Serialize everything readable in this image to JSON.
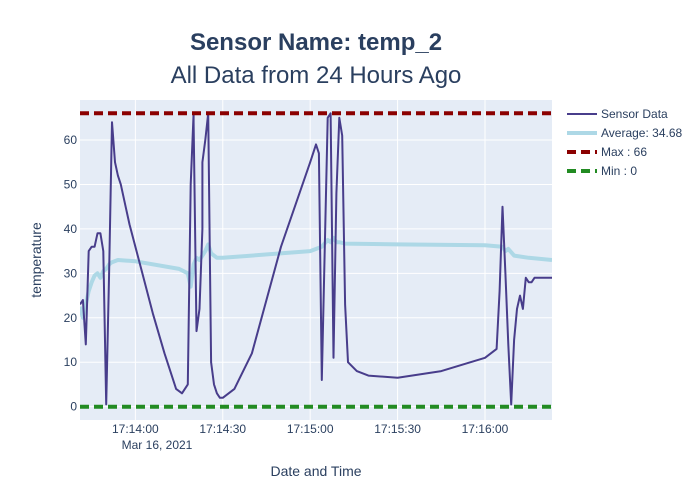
{
  "chart_data": {
    "type": "line",
    "title": "Sensor Name: temp_2",
    "subtitle": "All Data from 24 Hours Ago",
    "xlabel": "Date and Time",
    "ylabel": "temperature",
    "x_date_label": "Mar 16, 2021",
    "xlim": [
      "17:13:41",
      "17:16:23"
    ],
    "ylim": [
      -3,
      69
    ],
    "x_ticks": [
      "17:14:00",
      "17:14:30",
      "17:15:00",
      "17:15:30",
      "17:16:00"
    ],
    "y_ticks": [
      0,
      10,
      20,
      30,
      40,
      50,
      60
    ],
    "grid": true,
    "legend_position": "right",
    "colors": {
      "plot_bg": "#e5ecf6",
      "grid": "#ffffff",
      "text": "#2a3f5f",
      "sensor": "#483d8b",
      "average": "#add8e6",
      "max": "#8b0000",
      "min": "#228b22"
    },
    "series": [
      {
        "name": "Sensor Data",
        "x": [
          "17:13:41",
          "17:13:42",
          "17:13:43",
          "17:13:44",
          "17:13:45",
          "17:13:46",
          "17:13:47",
          "17:13:48",
          "17:13:49",
          "17:13:50",
          "17:13:51",
          "17:13:52",
          "17:13:53",
          "17:13:54",
          "17:13:55",
          "17:13:56",
          "17:13:58",
          "17:14:02",
          "17:14:06",
          "17:14:10",
          "17:14:14",
          "17:14:16",
          "17:14:18",
          "17:14:19",
          "17:14:20",
          "17:14:20",
          "17:14:21",
          "17:14:22",
          "17:14:23",
          "17:14:23",
          "17:14:24",
          "17:14:25",
          "17:14:26",
          "17:14:27",
          "17:14:28",
          "17:14:29",
          "17:14:30",
          "17:14:34",
          "17:14:40",
          "17:14:50",
          "17:15:00",
          "17:15:02",
          "17:15:03",
          "17:15:04",
          "17:15:05",
          "17:15:06",
          "17:15:07",
          "17:15:08",
          "17:15:09",
          "17:15:10",
          "17:15:11",
          "17:15:12",
          "17:15:13",
          "17:15:16",
          "17:15:20",
          "17:15:30",
          "17:15:45",
          "17:16:00",
          "17:16:04",
          "17:16:05",
          "17:16:06",
          "17:16:07",
          "17:16:08",
          "17:16:09",
          "17:16:10",
          "17:16:11",
          "17:16:12",
          "17:16:13",
          "17:16:14",
          "17:16:15",
          "17:16:16",
          "17:16:17",
          "17:16:18",
          "17:16:19",
          "17:16:20",
          "17:16:21",
          "17:16:22",
          "17:16:23"
        ],
        "values": [
          23,
          24,
          14,
          35,
          36,
          36,
          39,
          39,
          35,
          0.5,
          30,
          64,
          55,
          52,
          50,
          47,
          41,
          31,
          21,
          12,
          4,
          3,
          5,
          50,
          66,
          64,
          17,
          22,
          40,
          55,
          60,
          66,
          10,
          5,
          3,
          2,
          2,
          4,
          12,
          36,
          55,
          59,
          57,
          6,
          35,
          65,
          66,
          11,
          48,
          65,
          61,
          23,
          10,
          8,
          7,
          6.5,
          8,
          11,
          13,
          26,
          45,
          30,
          14,
          0.5,
          15,
          22,
          25,
          22,
          29,
          28,
          28,
          29,
          29,
          29,
          29,
          29,
          29,
          29
        ]
      },
      {
        "name": "Average: 34.68",
        "x": [
          "17:13:41",
          "17:13:42",
          "17:13:43",
          "17:13:44",
          "17:13:45",
          "17:13:46",
          "17:13:47",
          "17:13:48",
          "17:13:49",
          "17:13:50",
          "17:13:51",
          "17:13:52",
          "17:13:54",
          "17:14:00",
          "17:14:15",
          "17:14:18",
          "17:14:19",
          "17:14:20",
          "17:14:21",
          "17:14:22",
          "17:14:23",
          "17:14:24",
          "17:14:25",
          "17:14:26",
          "17:14:27",
          "17:14:28",
          "17:14:30",
          "17:15:00",
          "17:15:04",
          "17:15:06",
          "17:15:07",
          "17:15:08",
          "17:15:09",
          "17:15:10",
          "17:15:12",
          "17:15:30",
          "17:16:00",
          "17:16:06",
          "17:16:07",
          "17:16:08",
          "17:16:10",
          "17:16:15",
          "17:16:23"
        ],
        "values": [
          22.5,
          20,
          23,
          26,
          28,
          29.5,
          30,
          29,
          30.5,
          31,
          32,
          32.5,
          33,
          32.7,
          31,
          30,
          27,
          32,
          33.5,
          33,
          34,
          35,
          36.5,
          34.5,
          34,
          33.5,
          33.5,
          35,
          36,
          37.5,
          37,
          38,
          37,
          37,
          36.7,
          36.5,
          36.3,
          36,
          35,
          35.5,
          34,
          33.5,
          33
        ]
      },
      {
        "name": "Max : 66",
        "x": [
          "17:13:41",
          "17:16:23"
        ],
        "values": [
          66,
          66
        ]
      },
      {
        "name": "Min : 0",
        "x": [
          "17:13:41",
          "17:16:23"
        ],
        "values": [
          0,
          0
        ]
      }
    ]
  }
}
